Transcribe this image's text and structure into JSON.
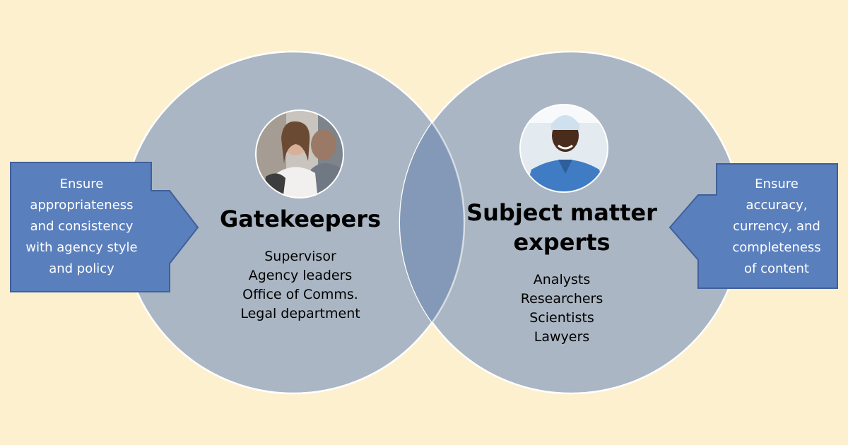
{
  "left_circle": {
    "title": "Gatekeepers",
    "members": [
      "Supervisor",
      "Agency leaders",
      "Office of Comms.",
      "Legal department"
    ]
  },
  "right_circle": {
    "title_lines": [
      "Subject matter",
      "experts"
    ],
    "members": [
      "Analysts",
      "Researchers",
      "Scientists",
      "Lawyers"
    ]
  },
  "left_arrow": {
    "lines": [
      "Ensure",
      "appropriateness",
      "and consistency",
      "with agency style",
      "and policy"
    ]
  },
  "right_arrow": {
    "lines": [
      "Ensure",
      "accuracy,",
      "currency, and",
      "completeness",
      "of content"
    ]
  },
  "photos": {
    "left": "woman-in-meeting-photo",
    "right": "smiling-surgeon-photo"
  },
  "colors": {
    "background": "#fdf0ce",
    "circle_fill": "#aab6c3",
    "circle_stroke": "#ffffff",
    "overlap_fill": "#8399b7",
    "arrow_fill": "#5a7fbd",
    "arrow_stroke": "#3f609a"
  }
}
